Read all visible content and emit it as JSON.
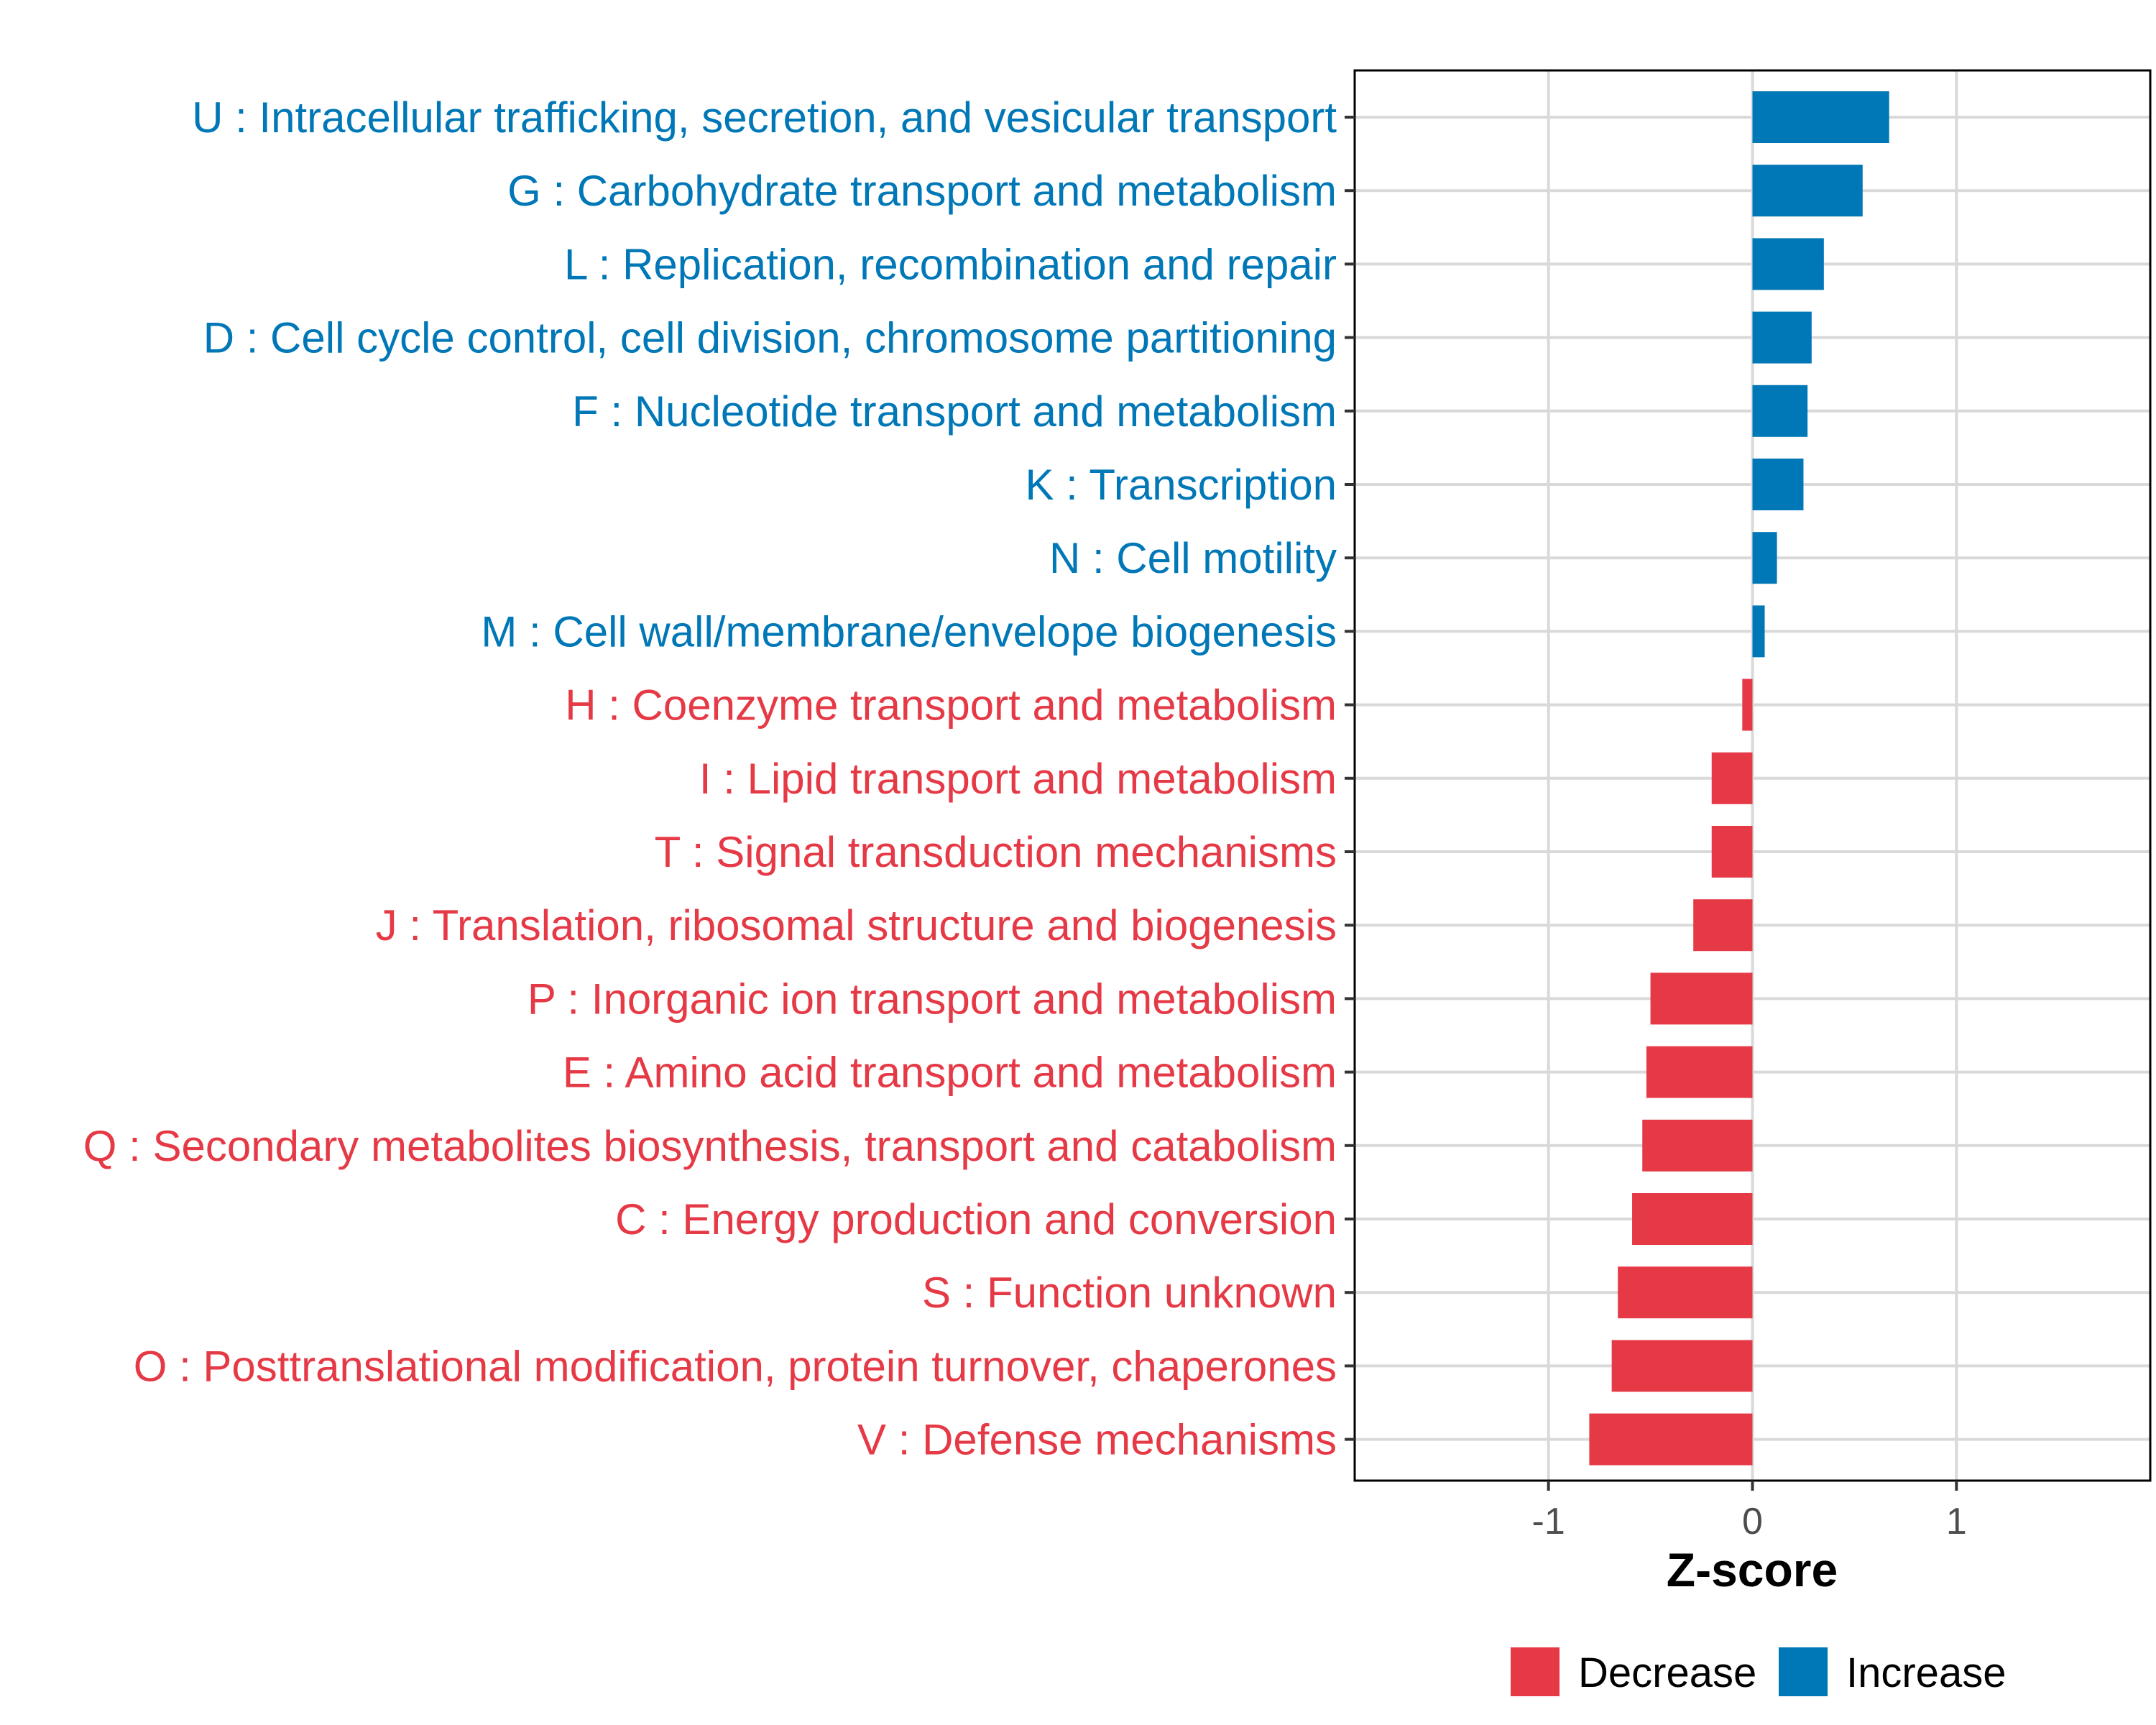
{
  "chart_data": {
    "type": "bar",
    "orientation": "horizontal",
    "title": "",
    "xlabel": "Z-score",
    "ylabel": "",
    "xlim": [
      -1.95,
      1.95
    ],
    "xticks": [
      -1,
      0,
      1
    ],
    "xtick_labels": [
      "-1",
      "0",
      "1"
    ],
    "grid": true,
    "legend_position": "bottom",
    "colors": {
      "Decrease": "#E63946",
      "Increase": "#0077B6"
    },
    "legend": [
      {
        "name": "Decrease",
        "color": "#E63946"
      },
      {
        "name": "Increase",
        "color": "#0077B6"
      }
    ],
    "categories": [
      "U : Intracellular trafficking, secretion, and vesicular transport",
      "G : Carbohydrate transport and metabolism",
      "L : Replication, recombination and repair",
      "D : Cell cycle control, cell division, chromosome partitioning",
      "F : Nucleotide transport and metabolism",
      "K : Transcription",
      "N : Cell motility",
      "M : Cell wall/membrane/envelope biogenesis",
      "H : Coenzyme transport and metabolism",
      "I : Lipid transport and metabolism",
      "T : Signal transduction mechanisms",
      "J : Translation, ribosomal structure and biogenesis",
      "P : Inorganic ion transport and metabolism",
      "E : Amino acid transport and metabolism",
      "Q : Secondary metabolites biosynthesis, transport and catabolism",
      "C : Energy production and conversion",
      "S : Function unknown",
      "O : Posttranslational modification, protein turnover, chaperones",
      "V : Defense mechanisms"
    ],
    "values": [
      0.67,
      0.54,
      0.35,
      0.29,
      0.27,
      0.25,
      0.12,
      0.06,
      -0.05,
      -0.2,
      -0.2,
      -0.29,
      -0.5,
      -0.52,
      -0.54,
      -0.59,
      -0.66,
      -0.69,
      -0.8
    ],
    "groups": [
      "Increase",
      "Increase",
      "Increase",
      "Increase",
      "Increase",
      "Increase",
      "Increase",
      "Increase",
      "Decrease",
      "Decrease",
      "Decrease",
      "Decrease",
      "Decrease",
      "Decrease",
      "Decrease",
      "Decrease",
      "Decrease",
      "Decrease",
      "Decrease"
    ]
  }
}
